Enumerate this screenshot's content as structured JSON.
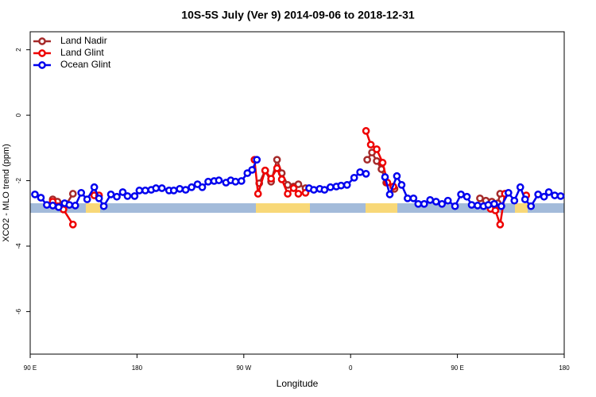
{
  "chart_data": {
    "type": "line",
    "title": "10S-5S July (Ver 9)   2014-09-06 to 2018-12-31",
    "xlabel": "Longitude",
    "ylabel": "XCO2 - MLO trend (ppm)",
    "xlim": [
      90,
      540
    ],
    "ylim": [
      -7.3,
      2.55
    ],
    "xticks": [
      {
        "value": 90,
        "label": "90 E"
      },
      180,
      {
        "value": 270,
        "label": "90 W"
      },
      {
        "value": 360,
        "label": "0"
      },
      {
        "value": 450,
        "label": "90 E"
      },
      {
        "value": 540,
        "label": "180"
      }
    ],
    "yticks": [
      2,
      0,
      -2,
      -4,
      -6
    ],
    "legend": "top-left",
    "series": [
      {
        "name": "Land Nadir",
        "color": "#a52a2a",
        "x": [
          109,
          113,
          118,
          126,
          null,
          283,
          288,
          293,
          298,
          302,
          307,
          312,
          316,
          322,
          null,
          374,
          378,
          382,
          386,
          390,
          397,
          null,
          469,
          474,
          479,
          484,
          486
        ],
        "values": [
          -2.57,
          -2.64,
          -2.86,
          -2.4,
          null,
          -2.08,
          -1.69,
          -2.03,
          -1.36,
          -1.77,
          -2.13,
          -2.18,
          -2.11,
          -2.23,
          null,
          -1.36,
          -1.14,
          -1.4,
          -1.65,
          -2.06,
          -2.25,
          null,
          -2.54,
          -2.61,
          -2.64,
          -2.69,
          -2.4
        ]
      },
      {
        "name": "Land Glint",
        "color": "#ee0000",
        "x": [
          109,
          113,
          118,
          126,
          null,
          144,
          148,
          null,
          279,
          282,
          288,
          293,
          298,
          302,
          307,
          312,
          316,
          322,
          null,
          373,
          377,
          382,
          387,
          391,
          396,
          null,
          478,
          482,
          486,
          490,
          null,
          508
        ],
        "values": [
          -2.64,
          -2.78,
          -2.88,
          -3.34,
          null,
          -2.45,
          -2.45,
          null,
          -1.36,
          -2.4,
          -1.69,
          -1.94,
          -1.62,
          -1.96,
          -2.4,
          -2.23,
          -2.4,
          -2.37,
          null,
          -0.48,
          -0.9,
          -1.04,
          -1.45,
          -2.06,
          -2.18,
          null,
          -2.86,
          -2.91,
          -3.34,
          -2.4,
          null,
          -2.45
        ]
      },
      {
        "name": "Ocean Glint",
        "color": "#0000ee",
        "x": [
          94,
          99,
          104,
          109,
          114,
          119,
          123,
          128,
          133,
          138,
          144,
          148,
          152,
          158,
          163,
          168,
          172,
          178,
          182,
          187,
          192,
          196,
          201,
          207,
          211,
          216,
          221,
          226,
          231,
          235,
          240,
          245,
          249,
          255,
          259,
          263,
          268,
          273,
          277,
          281,
          null,
          325,
          329,
          334,
          338,
          343,
          348,
          352,
          357,
          363,
          368,
          373,
          null,
          389,
          393,
          399,
          403,
          408,
          413,
          417,
          422,
          427,
          432,
          437,
          442,
          448,
          453,
          458,
          462,
          467,
          472,
          476,
          481,
          487,
          493,
          498,
          503,
          507,
          512,
          518,
          523,
          527,
          532,
          537
        ],
        "values": [
          -2.42,
          -2.52,
          -2.74,
          -2.76,
          -2.81,
          -2.69,
          -2.74,
          -2.76,
          -2.37,
          -2.57,
          -2.2,
          -2.54,
          -2.78,
          -2.42,
          -2.49,
          -2.35,
          -2.47,
          -2.47,
          -2.3,
          -2.3,
          -2.28,
          -2.23,
          -2.23,
          -2.3,
          -2.3,
          -2.25,
          -2.28,
          -2.2,
          -2.11,
          -2.2,
          -2.03,
          -2.01,
          -1.99,
          -2.06,
          -1.99,
          -2.03,
          -2.01,
          -1.77,
          -1.67,
          -1.36,
          null,
          -2.23,
          -2.28,
          -2.25,
          -2.28,
          -2.2,
          -2.18,
          -2.15,
          -2.13,
          -1.91,
          -1.74,
          -1.79,
          null,
          -1.89,
          -2.42,
          -1.86,
          -2.13,
          -2.54,
          -2.54,
          -2.71,
          -2.71,
          -2.59,
          -2.64,
          -2.71,
          -2.61,
          -2.78,
          -2.42,
          -2.49,
          -2.74,
          -2.76,
          -2.78,
          -2.74,
          -2.71,
          -2.78,
          -2.37,
          -2.61,
          -2.2,
          -2.57,
          -2.78,
          -2.42,
          -2.49,
          -2.35,
          -2.45,
          -2.47
        ]
      }
    ]
  }
}
